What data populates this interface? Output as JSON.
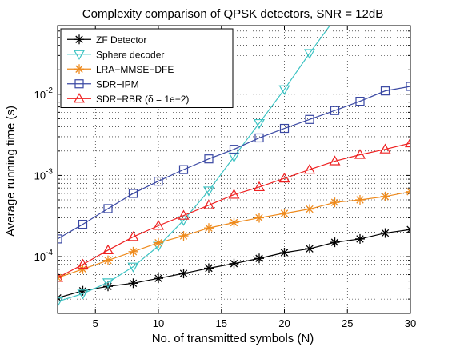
{
  "chart_data": {
    "type": "line",
    "title": "Complexity comparison of QPSK detectors, SNR = 12dB",
    "xlabel": "No. of transmitted symbols (N)",
    "ylabel": "Average running time (s)",
    "xlim": [
      2,
      30
    ],
    "ylim": [
      2e-05,
      0.07
    ],
    "yscale": "log",
    "grid": true,
    "legend_position": "top-left",
    "xticks": [
      5,
      10,
      15,
      20,
      25,
      30
    ],
    "yticks": [
      {
        "value": 0.0001,
        "base": "10",
        "exp": "-4"
      },
      {
        "value": 0.001,
        "base": "10",
        "exp": "-3"
      },
      {
        "value": 0.01,
        "base": "10",
        "exp": "-2"
      }
    ],
    "x": [
      2,
      4,
      6,
      8,
      10,
      12,
      14,
      16,
      18,
      20,
      22,
      24,
      26,
      28,
      30
    ],
    "series": [
      {
        "name": "ZF Detector",
        "color": "#000000",
        "marker": "star",
        "values": [
          3.1e-05,
          3.8e-05,
          4.3e-05,
          4.7e-05,
          5.4e-05,
          6.2e-05,
          7.2e-05,
          8.2e-05,
          9.5e-05,
          0.000112,
          0.000125,
          0.00015,
          0.000165,
          0.000195,
          0.000215
        ]
      },
      {
        "name": "Sphere decoder",
        "color": "#3cc3c3",
        "marker": "triangle-down",
        "values": [
          2.8e-05,
          3.5e-05,
          4.8e-05,
          7.5e-05,
          0.000135,
          0.00028,
          0.00065,
          0.0017,
          0.0044,
          0.0115,
          0.032,
          0.085,
          null,
          null,
          null
        ]
      },
      {
        "name": "LRA−MMSE−DFE",
        "color": "#ee8a1c",
        "marker": "star",
        "values": [
          5.5e-05,
          7e-05,
          9e-05,
          0.000115,
          0.000148,
          0.00018,
          0.000225,
          0.000262,
          0.0003,
          0.00034,
          0.000385,
          0.000465,
          0.0005,
          0.00055,
          0.00063
        ]
      },
      {
        "name": "SDR−IPM",
        "color": "#3a48a3",
        "marker": "square",
        "values": [
          0.000165,
          0.00025,
          0.00039,
          0.0006,
          0.00085,
          0.00118,
          0.0016,
          0.0021,
          0.0029,
          0.0038,
          0.0049,
          0.0063,
          0.0082,
          0.011,
          0.0125
        ]
      },
      {
        "name": "SDR−RBR (δ = 1e−2)",
        "color": "#ee2121",
        "marker": "triangle-up",
        "values": [
          5.5e-05,
          8e-05,
          0.00012,
          0.000175,
          0.00024,
          0.00032,
          0.00043,
          0.00058,
          0.00072,
          0.00092,
          0.00118,
          0.0015,
          0.0018,
          0.0021,
          0.0025
        ]
      }
    ]
  }
}
